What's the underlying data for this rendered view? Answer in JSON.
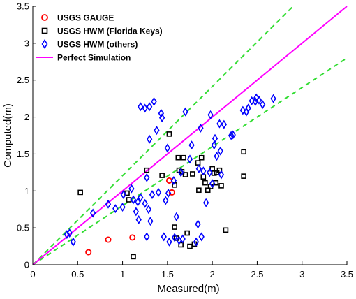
{
  "chart_data": {
    "type": "scatter",
    "title": "",
    "xlabel": "Measured(m)",
    "ylabel": "Computed(m)",
    "xlim": [
      0,
      3.5
    ],
    "ylim": [
      0,
      3.5
    ],
    "x_ticks": [
      "0",
      "0.5",
      "1",
      "1.5",
      "2",
      "2.5",
      "3",
      "3.5"
    ],
    "y_ticks": [
      "0",
      "0.5",
      "1",
      "1.5",
      "2",
      "2.5",
      "3",
      "3.5"
    ],
    "grid": false,
    "legend_position": "top-left",
    "colors": {
      "gauge": "#ff0000",
      "florida": "#000000",
      "others": "#0000ff",
      "perfect": "#ff00ff",
      "bounds": "#33dd33"
    },
    "series": [
      {
        "name": "USGS GAUGE",
        "marker": "circle",
        "points": [
          [
            0.62,
            0.17
          ],
          [
            0.84,
            0.34
          ],
          [
            1.11,
            0.37
          ],
          [
            1.52,
            1.14
          ],
          [
            1.55,
            0.98
          ]
        ]
      },
      {
        "name": "USGS HWM (Florida Keys)",
        "marker": "square",
        "points": [
          [
            0.53,
            0.98
          ],
          [
            1.05,
            0.97
          ],
          [
            1.07,
            0.88
          ],
          [
            1.12,
            0.11
          ],
          [
            1.27,
            1.28
          ],
          [
            1.44,
            1.21
          ],
          [
            1.52,
            1.77
          ],
          [
            1.58,
            1.08
          ],
          [
            1.58,
            0.51
          ],
          [
            1.6,
            0.36
          ],
          [
            1.62,
            1.45
          ],
          [
            1.63,
            1.28
          ],
          [
            1.65,
            0.27
          ],
          [
            1.66,
            1.26
          ],
          [
            1.68,
            1.45
          ],
          [
            1.7,
            1.22
          ],
          [
            1.72,
            0.43
          ],
          [
            1.75,
            0.25
          ],
          [
            1.78,
            1.23
          ],
          [
            1.8,
            0.28
          ],
          [
            1.84,
            1.38
          ],
          [
            1.85,
            1.01
          ],
          [
            1.88,
            1.45
          ],
          [
            1.9,
            1.19
          ],
          [
            1.92,
            1.11
          ],
          [
            1.95,
            1.01
          ],
          [
            1.98,
            1.06
          ],
          [
            2.0,
            1.3
          ],
          [
            2.02,
            1.24
          ],
          [
            2.04,
            1.11
          ],
          [
            2.05,
            1.25
          ],
          [
            2.08,
            1.28
          ],
          [
            2.1,
            1.07
          ],
          [
            2.15,
            0.47
          ],
          [
            2.35,
            1.53
          ],
          [
            2.35,
            1.2
          ]
        ]
      },
      {
        "name": "USGS HWM (others)",
        "marker": "diamond",
        "points": [
          [
            0.38,
            0.41
          ],
          [
            0.41,
            0.43
          ],
          [
            0.45,
            0.31
          ],
          [
            0.67,
            0.7
          ],
          [
            0.84,
            0.82
          ],
          [
            0.92,
            0.76
          ],
          [
            1.0,
            0.78
          ],
          [
            1.01,
            0.95
          ],
          [
            1.1,
            1.03
          ],
          [
            1.12,
            0.88
          ],
          [
            1.15,
            0.72
          ],
          [
            1.17,
            0.85
          ],
          [
            1.18,
            0.61
          ],
          [
            1.2,
            0.91
          ],
          [
            1.2,
            2.14
          ],
          [
            1.25,
            2.12
          ],
          [
            1.25,
            0.83
          ],
          [
            1.27,
            0.38
          ],
          [
            1.27,
            1.18
          ],
          [
            1.29,
            0.75
          ],
          [
            1.3,
            1.7
          ],
          [
            1.3,
            2.14
          ],
          [
            1.31,
            0.59
          ],
          [
            1.33,
            0.95
          ],
          [
            1.35,
            2.21
          ],
          [
            1.38,
            1.82
          ],
          [
            1.4,
            0.98
          ],
          [
            1.43,
            2.05
          ],
          [
            1.44,
            1.99
          ],
          [
            1.46,
            0.38
          ],
          [
            1.48,
            0.87
          ],
          [
            1.5,
            1.58
          ],
          [
            1.51,
            0.97
          ],
          [
            1.52,
            0.31
          ],
          [
            1.57,
            1.14
          ],
          [
            1.58,
            0.37
          ],
          [
            1.6,
            0.65
          ],
          [
            1.63,
            0.33
          ],
          [
            1.65,
            1.25
          ],
          [
            1.67,
            0.35
          ],
          [
            1.7,
            2.07
          ],
          [
            1.75,
            1.43
          ],
          [
            1.77,
            1.62
          ],
          [
            1.82,
            0.31
          ],
          [
            1.84,
            0.55
          ],
          [
            1.85,
            1.3
          ],
          [
            1.87,
            1.85
          ],
          [
            1.88,
            0.38
          ],
          [
            1.9,
            1.27
          ],
          [
            1.93,
            0.84
          ],
          [
            1.97,
            1.25
          ],
          [
            1.98,
            2.03
          ],
          [
            2.0,
            1.1
          ],
          [
            2.02,
            1.62
          ],
          [
            2.03,
            1.71
          ],
          [
            2.05,
            1.47
          ],
          [
            2.08,
            1.91
          ],
          [
            2.09,
            1.54
          ],
          [
            2.1,
            1.22
          ],
          [
            2.13,
            1.9
          ],
          [
            2.21,
            1.75
          ],
          [
            2.23,
            1.76
          ],
          [
            2.34,
            2.09
          ],
          [
            2.38,
            2.07
          ],
          [
            2.4,
            2.12
          ],
          [
            2.44,
            2.22
          ],
          [
            2.48,
            2.21
          ],
          [
            2.49,
            2.26
          ],
          [
            2.52,
            2.23
          ],
          [
            2.56,
            2.17
          ],
          [
            2.68,
            2.25
          ]
        ]
      },
      {
        "name": "Perfect Simulation",
        "marker": "line",
        "points": [
          [
            0,
            0
          ],
          [
            3.5,
            3.5
          ]
        ]
      }
    ],
    "bound_lines": [
      {
        "points": [
          [
            0,
            0
          ],
          [
            2.9,
            3.5
          ]
        ]
      },
      {
        "points": [
          [
            0,
            0
          ],
          [
            3.5,
            2.8
          ]
        ]
      }
    ]
  }
}
